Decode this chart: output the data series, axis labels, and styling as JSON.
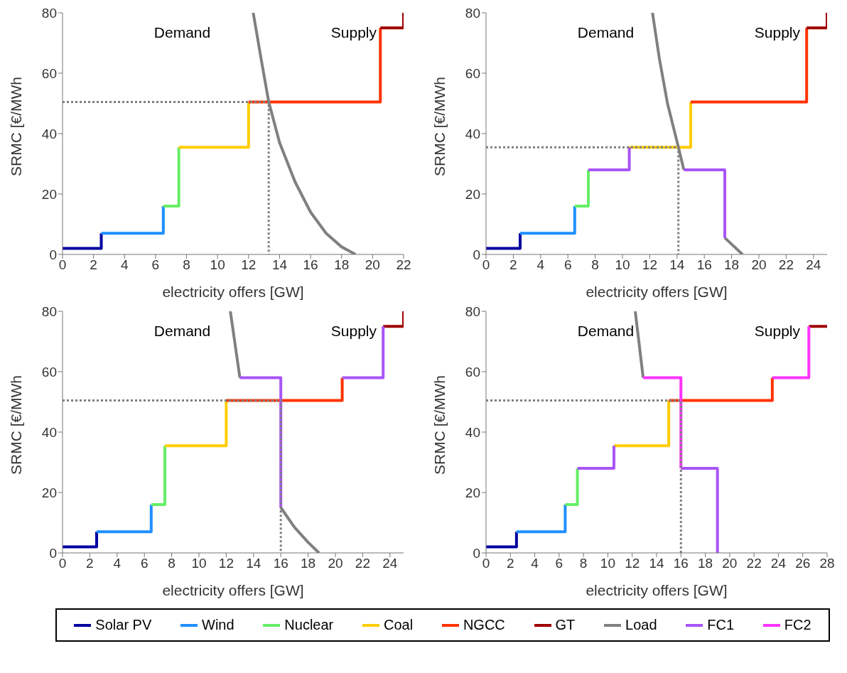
{
  "chart_data": [
    {
      "type": "line",
      "xlabel": "electricity offers [GW]",
      "ylabel": "SRMC [€/MWh",
      "xlim": [
        0,
        22
      ],
      "xticks": [
        0,
        2,
        4,
        6,
        8,
        10,
        12,
        14,
        16,
        18,
        20,
        22
      ],
      "ylim": [
        0,
        80
      ],
      "yticks": [
        0,
        20,
        40,
        60,
        80
      ],
      "legend": "bottom",
      "marker": "none",
      "grid": false,
      "annotations": [
        "Demand",
        "Supply"
      ],
      "series": [
        {
          "name": "Solar PV",
          "color": "#0000a0",
          "x": [
            0,
            2.5,
            2.5
          ],
          "values": [
            2,
            2,
            7
          ]
        },
        {
          "name": "Wind",
          "color": "#1e90ff",
          "x": [
            2.5,
            6.5,
            6.5
          ],
          "values": [
            7,
            7,
            16
          ]
        },
        {
          "name": "Nuclear",
          "color": "#66ee66",
          "x": [
            6.5,
            7.5,
            7.5
          ],
          "values": [
            16,
            16,
            35.5
          ]
        },
        {
          "name": "Coal",
          "color": "#ffcc00",
          "x": [
            7.5,
            12,
            12
          ],
          "values": [
            35.5,
            35.5,
            50.5
          ]
        },
        {
          "name": "NGCC",
          "color": "#ff3300",
          "x": [
            12,
            20.5,
            20.5
          ],
          "values": [
            50.5,
            50.5,
            75
          ]
        },
        {
          "name": "GT",
          "color": "#a00000",
          "x": [
            20.5,
            22,
            22
          ],
          "values": [
            75,
            75,
            80
          ]
        },
        {
          "name": "Load",
          "color": "#808080",
          "x": [
            12.3,
            12.8,
            13.3,
            14,
            15,
            16,
            17,
            18,
            18.9
          ],
          "values": [
            80,
            65,
            50.5,
            37,
            24,
            14,
            7,
            2.5,
            0
          ]
        },
        {
          "color": "#808080",
          "line_style": "dotted",
          "x": [
            0,
            13.3,
            13.3
          ],
          "values": [
            50.5,
            50.5,
            0
          ]
        }
      ]
    },
    {
      "type": "line",
      "xlabel": "electricity offers [GW]",
      "ylabel": "SRMC [€/MWh",
      "xlim": [
        0,
        25
      ],
      "xticks": [
        0,
        2,
        4,
        6,
        8,
        10,
        12,
        14,
        16,
        18,
        20,
        22,
        24
      ],
      "ylim": [
        0,
        80
      ],
      "yticks": [
        0,
        20,
        40,
        60,
        80
      ],
      "marker": "none",
      "grid": false,
      "annotations": [
        "Demand",
        "Supply"
      ],
      "series": [
        {
          "name": "Solar PV",
          "color": "#0000a0",
          "x": [
            0,
            2.5,
            2.5
          ],
          "values": [
            2,
            2,
            7
          ]
        },
        {
          "name": "Wind",
          "color": "#1e90ff",
          "x": [
            2.5,
            6.5,
            6.5
          ],
          "values": [
            7,
            7,
            16
          ]
        },
        {
          "name": "Nuclear",
          "color": "#66ee66",
          "x": [
            6.5,
            7.5,
            7.5
          ],
          "values": [
            16,
            16,
            28
          ]
        },
        {
          "name": "Coal",
          "color": "#ffcc00",
          "x": [
            10.5,
            15,
            15
          ],
          "values": [
            35.5,
            35.5,
            50.5
          ]
        },
        {
          "name": "NGCC",
          "color": "#ff3300",
          "x": [
            15,
            23.5,
            23.5
          ],
          "values": [
            50.5,
            50.5,
            75
          ]
        },
        {
          "name": "GT",
          "color": "#a00000",
          "x": [
            23.5,
            25,
            25
          ],
          "values": [
            75,
            75,
            80
          ]
        },
        {
          "name": "Load",
          "color": "#808080",
          "x": [
            12.2,
            12.7,
            13.3,
            14.1,
            14.5,
            16,
            17.5,
            18.8
          ],
          "values": [
            80,
            65,
            50,
            35.5,
            28,
            null,
            5.5,
            0
          ]
        },
        {
          "name": "FC1",
          "color": "#a855f7",
          "x": [
            7.5,
            10.5,
            10.5,
            12,
            14.5,
            17.5,
            17.5
          ],
          "values": [
            28,
            28,
            35.5,
            null,
            28,
            28,
            5.5
          ]
        },
        {
          "color": "#808080",
          "line_style": "dotted",
          "x": [
            0,
            14.1,
            14.1
          ],
          "values": [
            35.5,
            35.5,
            0
          ]
        }
      ]
    },
    {
      "type": "line",
      "xlabel": "electricity offers [GW]",
      "ylabel": "SRMC [€/MWh",
      "xlim": [
        0,
        25
      ],
      "xticks": [
        0,
        2,
        4,
        6,
        8,
        10,
        12,
        14,
        16,
        18,
        20,
        22,
        24
      ],
      "ylim": [
        0,
        80
      ],
      "yticks": [
        0,
        20,
        40,
        60,
        80
      ],
      "marker": "none",
      "grid": false,
      "annotations": [
        "Demand",
        "Supply"
      ],
      "series": [
        {
          "name": "Solar PV",
          "color": "#0000a0",
          "x": [
            0,
            2.5,
            2.5
          ],
          "values": [
            2,
            2,
            7
          ]
        },
        {
          "name": "Wind",
          "color": "#1e90ff",
          "x": [
            2.5,
            6.5,
            6.5
          ],
          "values": [
            7,
            7,
            16
          ]
        },
        {
          "name": "Nuclear",
          "color": "#66ee66",
          "x": [
            6.5,
            7.5,
            7.5
          ],
          "values": [
            16,
            16,
            35.5
          ]
        },
        {
          "name": "Coal",
          "color": "#ffcc00",
          "x": [
            7.5,
            12,
            12
          ],
          "values": [
            35.5,
            35.5,
            50.5
          ]
        },
        {
          "name": "NGCC",
          "color": "#ff3300",
          "x": [
            12,
            20.5,
            20.5
          ],
          "values": [
            50.5,
            50.5,
            58
          ]
        },
        {
          "name": "GT",
          "color": "#a00000",
          "x": [
            23.5,
            25,
            25
          ],
          "values": [
            75,
            75,
            80
          ]
        },
        {
          "name": "Load",
          "color": "#808080",
          "x": [
            12.3,
            13,
            14,
            16,
            17,
            18,
            18.8
          ],
          "values": [
            80,
            58,
            null,
            15,
            8.5,
            3.5,
            0
          ]
        },
        {
          "name": "FC1",
          "color": "#a855f7",
          "x": [
            13,
            16,
            16,
            18,
            20.5,
            23.5,
            23.5
          ],
          "values": [
            58,
            58,
            15,
            null,
            58,
            58,
            75
          ]
        },
        {
          "color": "#808080",
          "line_style": "dotted",
          "x": [
            0,
            16,
            16
          ],
          "values": [
            50.5,
            50.5,
            0
          ]
        }
      ]
    },
    {
      "type": "line",
      "xlabel": "electricity offers [GW]",
      "ylabel": "SRMC [€/MWh",
      "xlim": [
        0,
        28
      ],
      "xticks": [
        0,
        2,
        4,
        6,
        8,
        10,
        12,
        14,
        16,
        18,
        20,
        22,
        24,
        26,
        28
      ],
      "ylim": [
        0,
        80
      ],
      "yticks": [
        0,
        20,
        40,
        60,
        80
      ],
      "marker": "none",
      "grid": false,
      "annotations": [
        "Demand",
        "Supply"
      ],
      "series": [
        {
          "name": "Solar PV",
          "color": "#0000a0",
          "x": [
            0,
            2.5,
            2.5
          ],
          "values": [
            2,
            2,
            7
          ]
        },
        {
          "name": "Wind",
          "color": "#1e90ff",
          "x": [
            2.5,
            6.5,
            6.5
          ],
          "values": [
            7,
            7,
            16
          ]
        },
        {
          "name": "Nuclear",
          "color": "#66ee66",
          "x": [
            6.5,
            7.5,
            7.5
          ],
          "values": [
            16,
            16,
            28
          ]
        },
        {
          "name": "Coal",
          "color": "#ffcc00",
          "x": [
            10.5,
            15,
            15
          ],
          "values": [
            35.5,
            35.5,
            50.5
          ]
        },
        {
          "name": "NGCC",
          "color": "#ff3300",
          "x": [
            15,
            23.5,
            23.5
          ],
          "values": [
            50.5,
            50.5,
            58
          ]
        },
        {
          "name": "GT",
          "color": "#a00000",
          "x": [
            26.5,
            28
          ],
          "values": [
            75,
            75
          ]
        },
        {
          "name": "Load",
          "color": "#808080",
          "x": [
            12.25,
            12.9
          ],
          "values": [
            80,
            58
          ]
        },
        {
          "name": "FC1",
          "color": "#a855f7",
          "x": [
            7.5,
            10.5,
            10.5,
            13,
            16,
            19,
            19
          ],
          "values": [
            28,
            28,
            35.5,
            null,
            28,
            28,
            0
          ]
        },
        {
          "name": "FC2",
          "color": "#ff33ff",
          "x": [
            12.9,
            16,
            16,
            18,
            23.5,
            26.5,
            26.5
          ],
          "values": [
            58,
            58,
            28,
            null,
            58,
            58,
            75
          ]
        },
        {
          "color": "#808080",
          "line_style": "dotted",
          "x": [
            0,
            16,
            16
          ],
          "values": [
            50.5,
            50.5,
            0
          ]
        }
      ]
    }
  ]
}
